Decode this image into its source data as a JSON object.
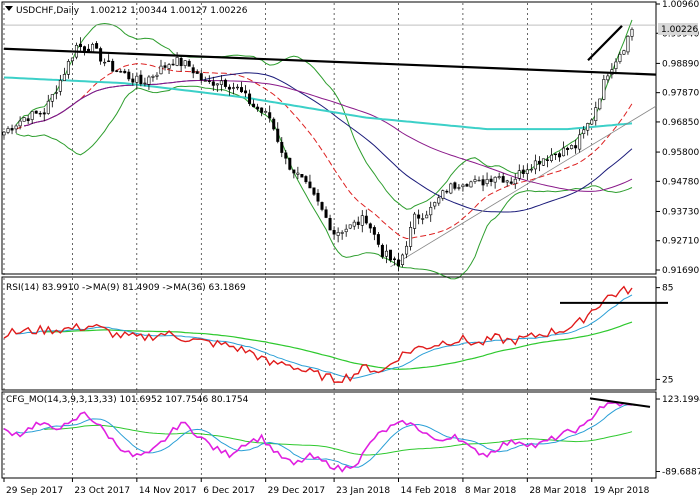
{
  "chart_data": [
    {
      "type": "candlestick",
      "symbol_title": "USDCHF,Daily",
      "ohlc_text": "1.00212 1.00344 1.00127 1.00226",
      "last_price": "1.00226",
      "ylim": [
        0.9169,
        1.0096
      ],
      "y_ticks": [
        "1.00960",
        "0.99940",
        "0.98890",
        "0.97870",
        "0.96850",
        "0.95800",
        "0.94780",
        "0.93730",
        "0.92710",
        "0.91690"
      ],
      "x_ticks": [
        "29 Sep 2017",
        "23 Oct 2017",
        "14 Nov 2017",
        "6 Dec 2017",
        "29 Dec 2017",
        "23 Jan 2018",
        "14 Feb 2018",
        "8 Mar 2018",
        "28 Mar 2018",
        "19 Apr 2018"
      ],
      "close_anchors": [
        [
          0,
          0.965
        ],
        [
          5,
          0.97
        ],
        [
          10,
          0.972
        ],
        [
          14,
          0.983
        ],
        [
          18,
          0.995
        ],
        [
          22,
          0.994
        ],
        [
          26,
          0.988
        ],
        [
          30,
          0.985
        ],
        [
          34,
          0.982
        ],
        [
          38,
          0.986
        ],
        [
          42,
          0.99
        ],
        [
          46,
          0.988
        ],
        [
          50,
          0.982
        ],
        [
          54,
          0.983
        ],
        [
          58,
          0.98
        ],
        [
          62,
          0.974
        ],
        [
          66,
          0.97
        ],
        [
          70,
          0.955
        ],
        [
          74,
          0.948
        ],
        [
          78,
          0.94
        ],
        [
          82,
          0.93
        ],
        [
          86,
          0.932
        ],
        [
          90,
          0.935
        ],
        [
          94,
          0.923
        ],
        [
          98,
          0.918
        ],
        [
          102,
          0.935
        ],
        [
          106,
          0.938
        ],
        [
          110,
          0.945
        ],
        [
          114,
          0.948
        ],
        [
          118,
          0.947
        ],
        [
          122,
          0.95
        ],
        [
          126,
          0.948
        ],
        [
          130,
          0.953
        ],
        [
          134,
          0.956
        ],
        [
          138,
          0.958
        ],
        [
          142,
          0.96
        ],
        [
          146,
          0.97
        ],
        [
          150,
          0.986
        ],
        [
          154,
          0.995
        ],
        [
          156,
          1.001
        ]
      ]
    },
    {
      "type": "line",
      "title": "RSI(14) 83.9910  ->MA(9) 81.4909  ->MA(36) 63.1869",
      "ylim": [
        20,
        90
      ],
      "y_ticks": [
        "85",
        "25"
      ],
      "anchors": [
        [
          0,
          55
        ],
        [
          8,
          57
        ],
        [
          16,
          58
        ],
        [
          22,
          60
        ],
        [
          28,
          54
        ],
        [
          34,
          52
        ],
        [
          40,
          55
        ],
        [
          48,
          50
        ],
        [
          56,
          47
        ],
        [
          62,
          42
        ],
        [
          66,
          35
        ],
        [
          70,
          36
        ],
        [
          74,
          31
        ],
        [
          78,
          28
        ],
        [
          82,
          25
        ],
        [
          86,
          27
        ],
        [
          90,
          33
        ],
        [
          94,
          30
        ],
        [
          98,
          40
        ],
        [
          102,
          45
        ],
        [
          106,
          47
        ],
        [
          110,
          50
        ],
        [
          114,
          51
        ],
        [
          118,
          48
        ],
        [
          122,
          52
        ],
        [
          126,
          50
        ],
        [
          130,
          52
        ],
        [
          134,
          55
        ],
        [
          138,
          57
        ],
        [
          142,
          60
        ],
        [
          146,
          70
        ],
        [
          150,
          79
        ],
        [
          154,
          83
        ],
        [
          156,
          84
        ]
      ]
    },
    {
      "type": "line",
      "title": "CFG_MO(14,3,9,3,13,33) 101.6952 107.7546 80.1754",
      "y_ticks": [
        "123.1994",
        "-89.6887"
      ],
      "ylim": [
        -100,
        135
      ],
      "anchors": [
        [
          0,
          30
        ],
        [
          4,
          20
        ],
        [
          8,
          50
        ],
        [
          12,
          40
        ],
        [
          16,
          45
        ],
        [
          20,
          85
        ],
        [
          24,
          40
        ],
        [
          28,
          -10
        ],
        [
          32,
          -45
        ],
        [
          36,
          -40
        ],
        [
          40,
          5
        ],
        [
          44,
          55
        ],
        [
          48,
          20
        ],
        [
          52,
          -20
        ],
        [
          56,
          -40
        ],
        [
          60,
          -5
        ],
        [
          64,
          10
        ],
        [
          68,
          -40
        ],
        [
          72,
          -70
        ],
        [
          76,
          -45
        ],
        [
          80,
          -65
        ],
        [
          84,
          -85
        ],
        [
          88,
          -60
        ],
        [
          92,
          10
        ],
        [
          96,
          40
        ],
        [
          100,
          55
        ],
        [
          104,
          30
        ],
        [
          108,
          -5
        ],
        [
          112,
          20
        ],
        [
          116,
          -25
        ],
        [
          120,
          -40
        ],
        [
          124,
          -10
        ],
        [
          128,
          0
        ],
        [
          132,
          -15
        ],
        [
          136,
          5
        ],
        [
          140,
          25
        ],
        [
          144,
          40
        ],
        [
          148,
          100
        ],
        [
          152,
          110
        ],
        [
          156,
          102
        ]
      ]
    }
  ]
}
